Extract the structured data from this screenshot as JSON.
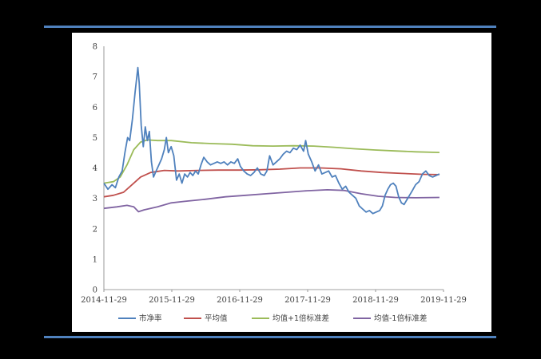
{
  "chart_data": {
    "type": "line",
    "title": "",
    "xlabel": "",
    "ylabel": "",
    "ylim": [
      0,
      8
    ],
    "yticks": [
      0,
      1,
      2,
      3,
      4,
      5,
      6,
      7,
      8
    ],
    "xtick_labels": [
      "2014-11-29",
      "2015-11-29",
      "2016-11-29",
      "2017-11-29",
      "2018-11-29",
      "2019-11-29"
    ],
    "grid": false,
    "legend_position": "bottom",
    "series": [
      {
        "name": "市净率",
        "color": "#4f81bd",
        "points": [
          [
            2014.91,
            3.5
          ],
          [
            2014.97,
            3.3
          ],
          [
            2015.03,
            3.45
          ],
          [
            2015.08,
            3.35
          ],
          [
            2015.13,
            3.7
          ],
          [
            2015.18,
            3.9
          ],
          [
            2015.22,
            4.5
          ],
          [
            2015.26,
            5.0
          ],
          [
            2015.29,
            4.9
          ],
          [
            2015.33,
            5.6
          ],
          [
            2015.37,
            6.5
          ],
          [
            2015.41,
            7.3
          ],
          [
            2015.43,
            6.8
          ],
          [
            2015.46,
            5.4
          ],
          [
            2015.49,
            4.7
          ],
          [
            2015.52,
            5.35
          ],
          [
            2015.55,
            4.9
          ],
          [
            2015.58,
            5.2
          ],
          [
            2015.61,
            4.2
          ],
          [
            2015.64,
            3.7
          ],
          [
            2015.68,
            3.9
          ],
          [
            2015.72,
            4.1
          ],
          [
            2015.76,
            4.3
          ],
          [
            2015.8,
            4.6
          ],
          [
            2015.83,
            5.0
          ],
          [
            2015.86,
            4.5
          ],
          [
            2015.9,
            4.7
          ],
          [
            2015.94,
            4.4
          ],
          [
            2015.98,
            3.6
          ],
          [
            2016.02,
            3.8
          ],
          [
            2016.06,
            3.5
          ],
          [
            2016.1,
            3.8
          ],
          [
            2016.14,
            3.7
          ],
          [
            2016.18,
            3.85
          ],
          [
            2016.22,
            3.75
          ],
          [
            2016.26,
            3.9
          ],
          [
            2016.3,
            3.8
          ],
          [
            2016.34,
            4.1
          ],
          [
            2016.38,
            4.35
          ],
          [
            2016.43,
            4.2
          ],
          [
            2016.48,
            4.1
          ],
          [
            2016.53,
            4.15
          ],
          [
            2016.58,
            4.2
          ],
          [
            2016.63,
            4.15
          ],
          [
            2016.68,
            4.2
          ],
          [
            2016.73,
            4.1
          ],
          [
            2016.78,
            4.2
          ],
          [
            2016.83,
            4.15
          ],
          [
            2016.88,
            4.3
          ],
          [
            2016.92,
            4.05
          ],
          [
            2016.97,
            3.9
          ],
          [
            2017.02,
            3.8
          ],
          [
            2017.07,
            3.75
          ],
          [
            2017.12,
            3.85
          ],
          [
            2017.17,
            4.0
          ],
          [
            2017.22,
            3.8
          ],
          [
            2017.27,
            3.75
          ],
          [
            2017.31,
            3.9
          ],
          [
            2017.35,
            4.4
          ],
          [
            2017.4,
            4.1
          ],
          [
            2017.45,
            4.2
          ],
          [
            2017.5,
            4.3
          ],
          [
            2017.55,
            4.45
          ],
          [
            2017.6,
            4.55
          ],
          [
            2017.65,
            4.5
          ],
          [
            2017.7,
            4.65
          ],
          [
            2017.75,
            4.6
          ],
          [
            2017.8,
            4.75
          ],
          [
            2017.85,
            4.55
          ],
          [
            2017.88,
            4.9
          ],
          [
            2017.92,
            4.45
          ],
          [
            2017.97,
            4.2
          ],
          [
            2018.02,
            3.9
          ],
          [
            2018.07,
            4.1
          ],
          [
            2018.12,
            3.8
          ],
          [
            2018.17,
            3.85
          ],
          [
            2018.22,
            3.9
          ],
          [
            2018.27,
            3.7
          ],
          [
            2018.32,
            3.75
          ],
          [
            2018.37,
            3.5
          ],
          [
            2018.42,
            3.3
          ],
          [
            2018.47,
            3.4
          ],
          [
            2018.52,
            3.2
          ],
          [
            2018.57,
            3.1
          ],
          [
            2018.62,
            3.0
          ],
          [
            2018.67,
            2.75
          ],
          [
            2018.72,
            2.65
          ],
          [
            2018.77,
            2.55
          ],
          [
            2018.82,
            2.6
          ],
          [
            2018.87,
            2.5
          ],
          [
            2018.92,
            2.55
          ],
          [
            2018.97,
            2.6
          ],
          [
            2019.01,
            2.75
          ],
          [
            2019.05,
            3.1
          ],
          [
            2019.09,
            3.3
          ],
          [
            2019.13,
            3.45
          ],
          [
            2019.17,
            3.5
          ],
          [
            2019.21,
            3.4
          ],
          [
            2019.25,
            3.05
          ],
          [
            2019.29,
            2.85
          ],
          [
            2019.33,
            2.8
          ],
          [
            2019.37,
            2.95
          ],
          [
            2019.41,
            3.1
          ],
          [
            2019.45,
            3.25
          ],
          [
            2019.5,
            3.45
          ],
          [
            2019.55,
            3.55
          ],
          [
            2019.6,
            3.8
          ],
          [
            2019.65,
            3.9
          ],
          [
            2019.7,
            3.75
          ],
          [
            2019.75,
            3.7
          ],
          [
            2019.8,
            3.75
          ],
          [
            2019.85,
            3.8
          ]
        ]
      },
      {
        "name": "平均值",
        "color": "#c0504d",
        "points": [
          [
            2014.91,
            3.05
          ],
          [
            2015.05,
            3.1
          ],
          [
            2015.2,
            3.2
          ],
          [
            2015.3,
            3.4
          ],
          [
            2015.45,
            3.7
          ],
          [
            2015.6,
            3.85
          ],
          [
            2015.8,
            3.92
          ],
          [
            2016.0,
            3.9
          ],
          [
            2016.3,
            3.92
          ],
          [
            2016.6,
            3.93
          ],
          [
            2016.9,
            3.93
          ],
          [
            2017.2,
            3.94
          ],
          [
            2017.5,
            3.96
          ],
          [
            2017.8,
            4.0
          ],
          [
            2018.1,
            4.0
          ],
          [
            2018.4,
            3.97
          ],
          [
            2018.7,
            3.9
          ],
          [
            2019.0,
            3.85
          ],
          [
            2019.3,
            3.82
          ],
          [
            2019.6,
            3.79
          ],
          [
            2019.85,
            3.78
          ]
        ]
      },
      {
        "name": "均值+1倍标准差",
        "color": "#9bbb59",
        "points": [
          [
            2014.91,
            3.5
          ],
          [
            2015.05,
            3.55
          ],
          [
            2015.15,
            3.7
          ],
          [
            2015.25,
            4.1
          ],
          [
            2015.35,
            4.6
          ],
          [
            2015.45,
            4.85
          ],
          [
            2015.55,
            4.92
          ],
          [
            2015.7,
            4.9
          ],
          [
            2015.9,
            4.9
          ],
          [
            2016.2,
            4.83
          ],
          [
            2016.5,
            4.8
          ],
          [
            2016.8,
            4.78
          ],
          [
            2017.1,
            4.73
          ],
          [
            2017.4,
            4.72
          ],
          [
            2017.7,
            4.73
          ],
          [
            2018.0,
            4.72
          ],
          [
            2018.3,
            4.68
          ],
          [
            2018.6,
            4.63
          ],
          [
            2018.9,
            4.59
          ],
          [
            2019.2,
            4.56
          ],
          [
            2019.5,
            4.53
          ],
          [
            2019.85,
            4.51
          ]
        ]
      },
      {
        "name": "均值-1倍标准差",
        "color": "#8064a2",
        "points": [
          [
            2014.91,
            2.67
          ],
          [
            2015.1,
            2.72
          ],
          [
            2015.25,
            2.77
          ],
          [
            2015.35,
            2.72
          ],
          [
            2015.42,
            2.56
          ],
          [
            2015.5,
            2.62
          ],
          [
            2015.7,
            2.72
          ],
          [
            2015.9,
            2.85
          ],
          [
            2016.1,
            2.9
          ],
          [
            2016.4,
            2.97
          ],
          [
            2016.7,
            3.05
          ],
          [
            2017.0,
            3.1
          ],
          [
            2017.3,
            3.15
          ],
          [
            2017.6,
            3.2
          ],
          [
            2017.9,
            3.25
          ],
          [
            2018.2,
            3.28
          ],
          [
            2018.45,
            3.26
          ],
          [
            2018.7,
            3.15
          ],
          [
            2018.95,
            3.07
          ],
          [
            2019.2,
            3.03
          ],
          [
            2019.5,
            3.02
          ],
          [
            2019.85,
            3.03
          ]
        ]
      }
    ]
  }
}
